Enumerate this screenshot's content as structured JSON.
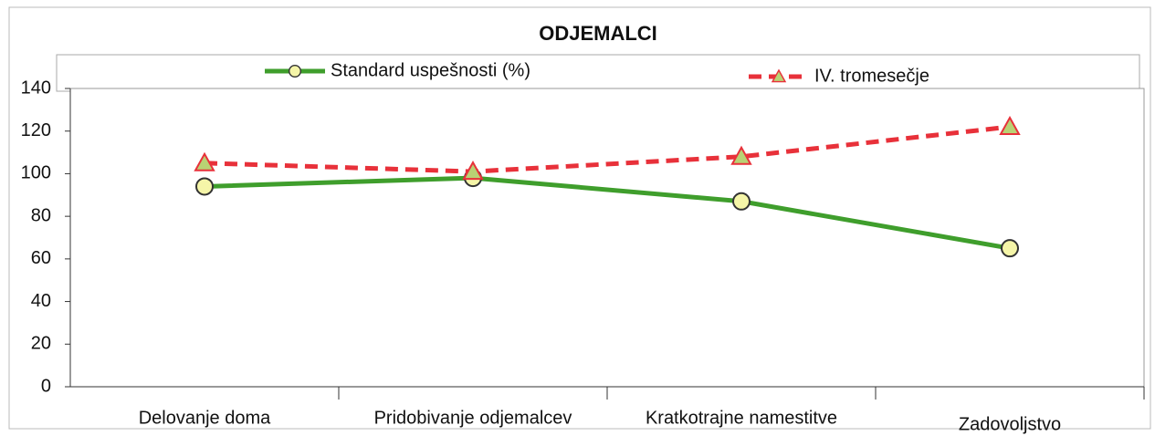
{
  "chart_data": {
    "type": "line",
    "title": "ODJEMALCI",
    "categories": [
      "Delovanje doma",
      "Pridobivanje odjemalcev",
      "Kratkotrajne namestitve",
      "Zadovoljstvo"
    ],
    "series": [
      {
        "name": "Standard uspešnosti (%)",
        "color": "#3f9e2c",
        "marker": "circle",
        "dashed": false,
        "values": [
          94,
          98,
          87,
          65
        ]
      },
      {
        "name": "IV. tromesečje",
        "color": "#e8313a",
        "marker": "triangle",
        "dashed": true,
        "values": [
          105,
          101,
          108,
          122
        ]
      }
    ],
    "ylim": [
      0,
      140
    ],
    "yticks": [
      0,
      20,
      40,
      60,
      80,
      100,
      120,
      140
    ],
    "grid": false,
    "legend": "top"
  }
}
